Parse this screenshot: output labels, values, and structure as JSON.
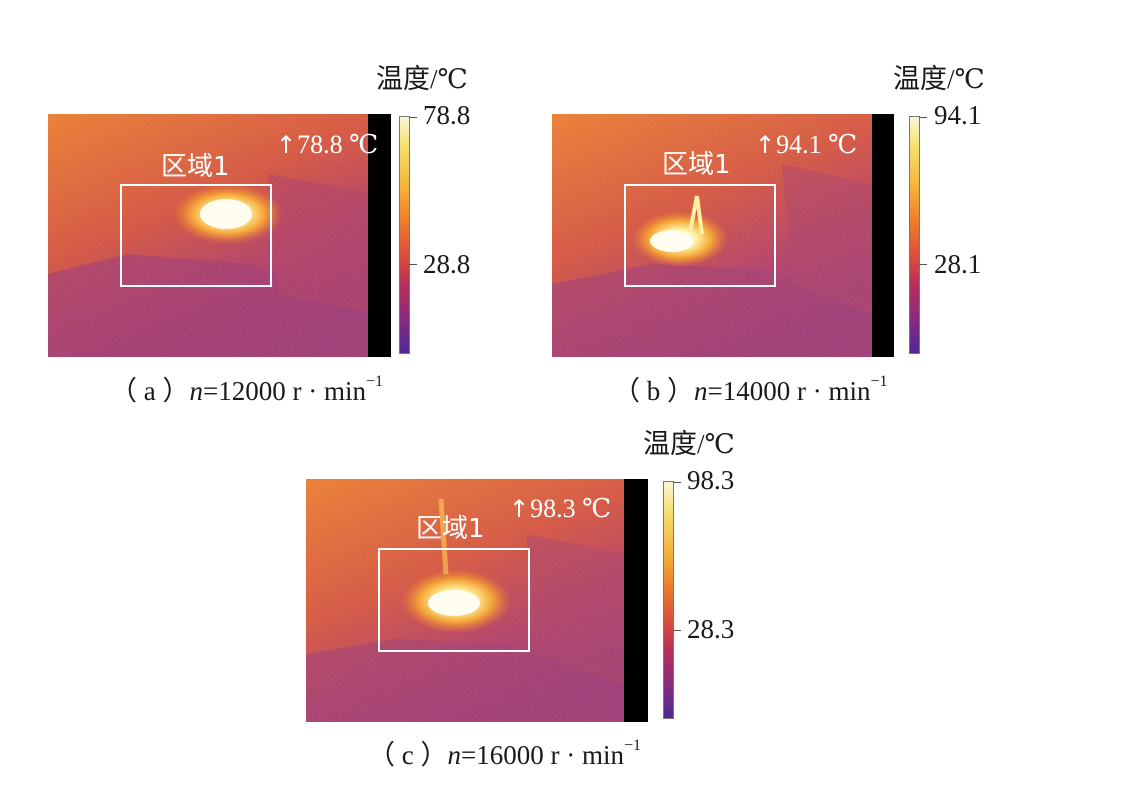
{
  "panels": [
    {
      "id": "a",
      "colorbar_title": "温度/℃",
      "max_value": "78.8",
      "mid_value": "28.8",
      "max_readout": "78.8 ℃",
      "region_label": "区域1",
      "caption_prefix": "（ a ）",
      "caption_var": "n",
      "caption_value": "=12000 r · min",
      "caption_exp": "−1"
    },
    {
      "id": "b",
      "colorbar_title": "温度/℃",
      "max_value": "94.1",
      "mid_value": "28.1",
      "max_readout": "94.1 ℃",
      "region_label": "区域1",
      "caption_prefix": "（ b ）",
      "caption_var": "n",
      "caption_value": "=14000 r · min",
      "caption_exp": "−1"
    },
    {
      "id": "c",
      "colorbar_title": "温度/℃",
      "max_value": "98.3",
      "mid_value": "28.3",
      "max_readout": "98.3 ℃",
      "region_label": "区域1",
      "caption_prefix": "（ c ）",
      "caption_var": "n",
      "caption_value": "=16000 r · min",
      "caption_exp": "−1"
    }
  ],
  "colors": {
    "hot": "#fffbe0",
    "warm": "#f08a2c",
    "mid": "#c23c4a",
    "cool": "#6a2a8c"
  }
}
